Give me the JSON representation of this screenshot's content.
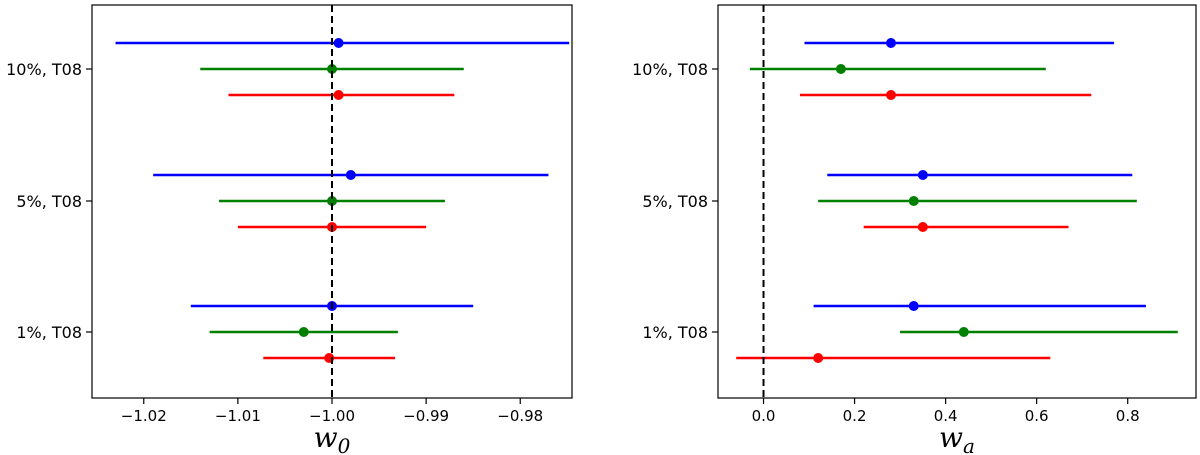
{
  "chart_data": [
    {
      "type": "errorbar",
      "xlabel": "w",
      "xlabel_sub": "0",
      "xlim": [
        -1.0255,
        -0.9745
      ],
      "xticks": [
        -1.02,
        -1.01,
        -1.0,
        -0.99,
        -0.98
      ],
      "xtick_labels": [
        "−1.02",
        "−1.01",
        "−1.00",
        "−0.99",
        "−0.98"
      ],
      "reference_line": -1.0,
      "categories": [
        "10%, T08",
        "5%, T08",
        "1%, T08"
      ],
      "colors": [
        "#0000ff",
        "#008000",
        "#ff0000"
      ],
      "points": [
        {
          "category": "10%, T08",
          "color_index": 0,
          "value": -0.9993,
          "low": -1.023,
          "high": -0.9748
        },
        {
          "category": "10%, T08",
          "color_index": 1,
          "value": -1.0,
          "low": -1.014,
          "high": -0.986
        },
        {
          "category": "10%, T08",
          "color_index": 2,
          "value": -0.9993,
          "low": -1.011,
          "high": -0.987
        },
        {
          "category": "5%, T08",
          "color_index": 0,
          "value": -0.998,
          "low": -1.019,
          "high": -0.977
        },
        {
          "category": "5%, T08",
          "color_index": 1,
          "value": -1.0,
          "low": -1.012,
          "high": -0.988
        },
        {
          "category": "5%, T08",
          "color_index": 2,
          "value": -1.0,
          "low": -1.01,
          "high": -0.99
        },
        {
          "category": "1%, T08",
          "color_index": 0,
          "value": -1.0,
          "low": -1.015,
          "high": -0.985
        },
        {
          "category": "1%, T08",
          "color_index": 1,
          "value": -1.003,
          "low": -1.013,
          "high": -0.993
        },
        {
          "category": "1%, T08",
          "color_index": 2,
          "value": -1.0003,
          "low": -1.0073,
          "high": -0.9933
        }
      ]
    },
    {
      "type": "errorbar",
      "xlabel": "w",
      "xlabel_sub": "a",
      "xlim": [
        -0.1,
        0.95
      ],
      "xticks": [
        0.0,
        0.2,
        0.4,
        0.6,
        0.8
      ],
      "xtick_labels": [
        "0.0",
        "0.2",
        "0.4",
        "0.6",
        "0.8"
      ],
      "reference_line": 0.0,
      "categories": [
        "10%, T08",
        "5%, T08",
        "1%, T08"
      ],
      "colors": [
        "#0000ff",
        "#008000",
        "#ff0000"
      ],
      "points": [
        {
          "category": "10%, T08",
          "color_index": 0,
          "value": 0.28,
          "low": 0.09,
          "high": 0.77
        },
        {
          "category": "10%, T08",
          "color_index": 1,
          "value": 0.17,
          "low": -0.03,
          "high": 0.62
        },
        {
          "category": "10%, T08",
          "color_index": 2,
          "value": 0.28,
          "low": 0.08,
          "high": 0.72
        },
        {
          "category": "5%, T08",
          "color_index": 0,
          "value": 0.35,
          "low": 0.14,
          "high": 0.81
        },
        {
          "category": "5%, T08",
          "color_index": 1,
          "value": 0.33,
          "low": 0.12,
          "high": 0.82
        },
        {
          "category": "5%, T08",
          "color_index": 2,
          "value": 0.35,
          "low": 0.22,
          "high": 0.67
        },
        {
          "category": "1%, T08",
          "color_index": 0,
          "value": 0.33,
          "low": 0.11,
          "high": 0.84
        },
        {
          "category": "1%, T08",
          "color_index": 1,
          "value": 0.44,
          "low": 0.3,
          "high": 0.91
        },
        {
          "category": "1%, T08",
          "color_index": 2,
          "value": 0.12,
          "low": -0.06,
          "high": 0.63
        }
      ]
    }
  ]
}
